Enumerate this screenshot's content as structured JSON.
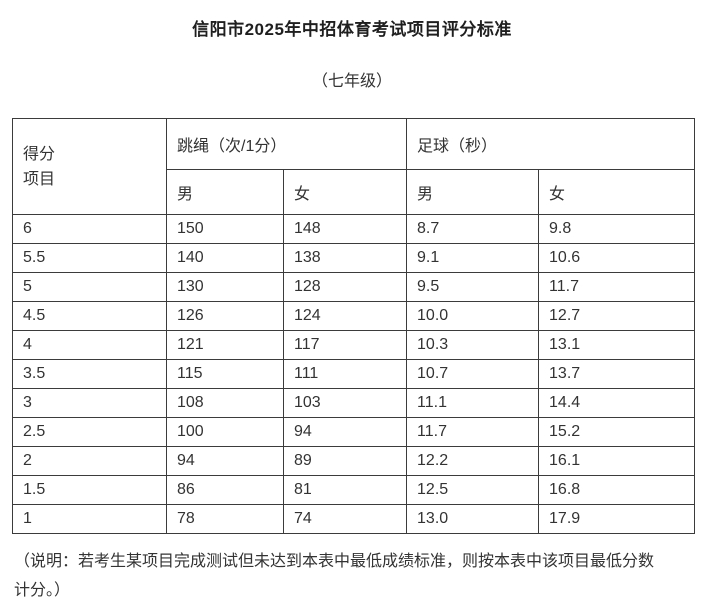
{
  "title": "信阳市2025年中招体育考试项目评分标准",
  "subtitle": "（七年级）",
  "table": {
    "corner": [
      "得分",
      "项目"
    ],
    "group_headers": [
      "跳绳（次/1分）",
      "足球（秒）"
    ],
    "sub_headers": [
      "男",
      "女",
      "男",
      "女"
    ],
    "rows": [
      [
        "6",
        "150",
        "148",
        "8.7",
        "9.8"
      ],
      [
        "5.5",
        "140",
        "138",
        "9.1",
        "10.6"
      ],
      [
        "5",
        "130",
        "128",
        "9.5",
        "11.7"
      ],
      [
        "4.5",
        "126",
        "124",
        "10.0",
        "12.7"
      ],
      [
        "4",
        "121",
        "117",
        "10.3",
        "13.1"
      ],
      [
        "3.5",
        "115",
        "111",
        "10.7",
        "13.7"
      ],
      [
        "3",
        "108",
        "103",
        "11.1",
        "14.4"
      ],
      [
        "2.5",
        "100",
        "94",
        "11.7",
        "15.2"
      ],
      [
        "2",
        "94",
        "89",
        "12.2",
        "16.1"
      ],
      [
        "1.5",
        "86",
        "81",
        "12.5",
        "16.8"
      ],
      [
        "1",
        "78",
        "74",
        "13.0",
        "17.9"
      ]
    ]
  },
  "note": "（说明：若考生某项目完成测试但未达到本表中最低成绩标准，则按本表中该项目最低分数计分。）",
  "colors": {
    "background": "#ffffff",
    "text": "#333333",
    "title": "#1f1f1f",
    "border": "#3b3b3b"
  }
}
